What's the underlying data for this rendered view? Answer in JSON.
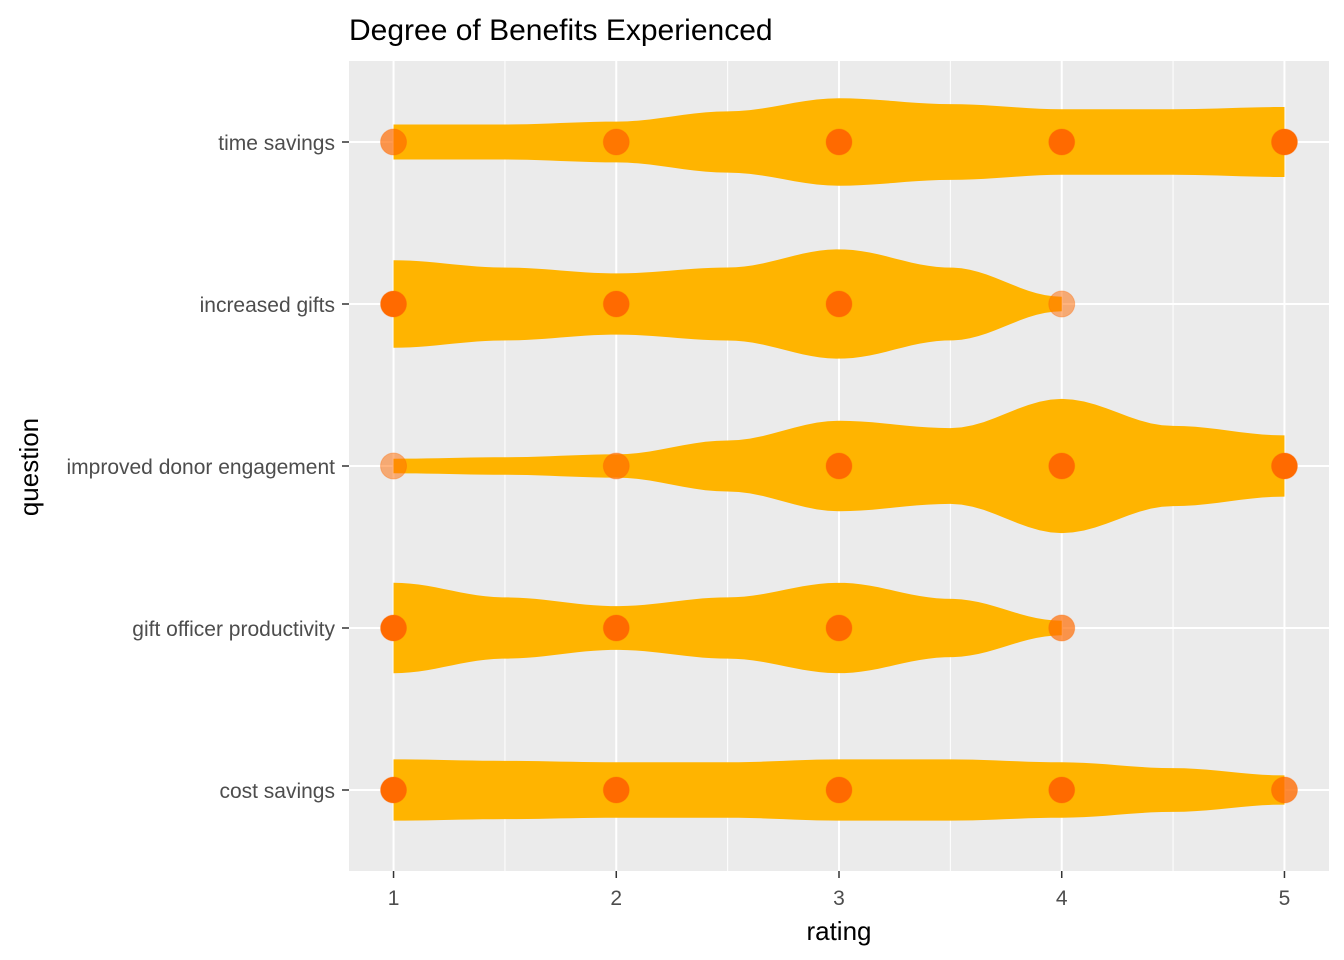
{
  "chart_data": {
    "type": "violin",
    "title": "Degree of Benefits Experienced",
    "xlabel": "rating",
    "ylabel": "question",
    "xlim": [
      0.8,
      5.2
    ],
    "x_ticks": [
      1,
      2,
      3,
      4,
      5
    ],
    "x_tick_labels": [
      "1",
      "2",
      "3",
      "4",
      "5"
    ],
    "categories": [
      "time savings",
      "increased gifts",
      "improved donor engagement",
      "gift officer productivity",
      "cost savings"
    ],
    "grid": true,
    "colors": {
      "panel_background": "#ebebeb",
      "grid": "#ffffff",
      "violin_fill": "#ffb400",
      "point": "#ff6a00",
      "tick_text": "#4d4d4d"
    },
    "series": [
      {
        "category": "time savings",
        "range": [
          1,
          5
        ],
        "density": [
          [
            1,
            0.24
          ],
          [
            1.5,
            0.24
          ],
          [
            2,
            0.28
          ],
          [
            2.5,
            0.42
          ],
          [
            3,
            0.6
          ],
          [
            3.5,
            0.52
          ],
          [
            4,
            0.45
          ],
          [
            4.5,
            0.45
          ],
          [
            5,
            0.48
          ]
        ],
        "points": [
          {
            "x": 1,
            "strength": 0.55
          },
          {
            "x": 2,
            "strength": 0.75
          },
          {
            "x": 3,
            "strength": 1
          },
          {
            "x": 4,
            "strength": 1
          },
          {
            "x": 5,
            "strength": 1
          }
        ]
      },
      {
        "category": "increased gifts",
        "range": [
          1,
          4
        ],
        "density": [
          [
            1,
            0.6
          ],
          [
            1.5,
            0.5
          ],
          [
            2,
            0.42
          ],
          [
            2.5,
            0.5
          ],
          [
            3,
            0.75
          ],
          [
            3.5,
            0.5
          ],
          [
            4,
            0.1
          ]
        ],
        "points": [
          {
            "x": 1,
            "strength": 1
          },
          {
            "x": 2,
            "strength": 1
          },
          {
            "x": 3,
            "strength": 1
          },
          {
            "x": 4,
            "strength": 0.3
          }
        ]
      },
      {
        "category": "improved donor engagement",
        "range": [
          1,
          5
        ],
        "density": [
          [
            1,
            0.1
          ],
          [
            1.5,
            0.12
          ],
          [
            2,
            0.16
          ],
          [
            2.5,
            0.35
          ],
          [
            3,
            0.62
          ],
          [
            3.5,
            0.52
          ],
          [
            4,
            0.92
          ],
          [
            4.5,
            0.55
          ],
          [
            5,
            0.42
          ]
        ],
        "points": [
          {
            "x": 1,
            "strength": 0.3
          },
          {
            "x": 2,
            "strength": 0.55
          },
          {
            "x": 3,
            "strength": 1
          },
          {
            "x": 4,
            "strength": 1
          },
          {
            "x": 5,
            "strength": 1
          }
        ]
      },
      {
        "category": "gift officer productivity",
        "range": [
          1,
          4
        ],
        "density": [
          [
            1,
            0.62
          ],
          [
            1.5,
            0.42
          ],
          [
            2,
            0.3
          ],
          [
            2.5,
            0.42
          ],
          [
            3,
            0.62
          ],
          [
            3.5,
            0.4
          ],
          [
            4,
            0.1
          ]
        ],
        "points": [
          {
            "x": 1,
            "strength": 1
          },
          {
            "x": 2,
            "strength": 1
          },
          {
            "x": 3,
            "strength": 1
          },
          {
            "x": 4,
            "strength": 0.55
          }
        ]
      },
      {
        "category": "cost savings",
        "range": [
          1,
          5
        ],
        "density": [
          [
            1,
            0.42
          ],
          [
            1.5,
            0.4
          ],
          [
            2,
            0.38
          ],
          [
            2.5,
            0.38
          ],
          [
            3,
            0.42
          ],
          [
            3.5,
            0.42
          ],
          [
            4,
            0.38
          ],
          [
            4.5,
            0.3
          ],
          [
            5,
            0.2
          ]
        ],
        "points": [
          {
            "x": 1,
            "strength": 1
          },
          {
            "x": 2,
            "strength": 1
          },
          {
            "x": 3,
            "strength": 1
          },
          {
            "x": 4,
            "strength": 1
          },
          {
            "x": 5,
            "strength": 0.7
          }
        ]
      }
    ]
  }
}
